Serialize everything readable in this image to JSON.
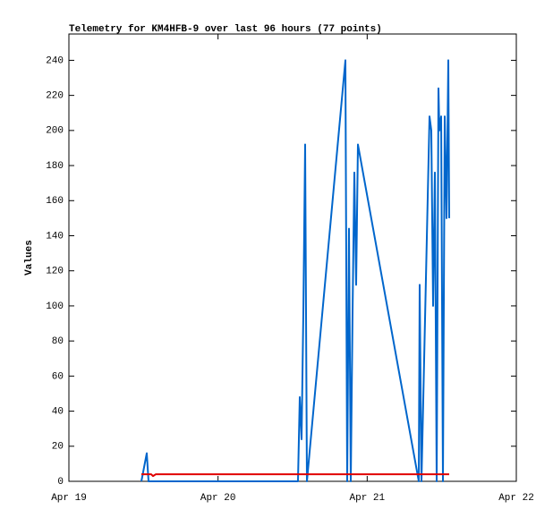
{
  "chart_data": {
    "type": "line",
    "title": "Telemetry for KM4HFB-9 over last 96 hours (77 points)",
    "ylabel": "Values",
    "xlim": [
      0,
      3
    ],
    "xticks": [
      {
        "value": 0,
        "label": "Apr 19"
      },
      {
        "value": 1,
        "label": "Apr 20"
      },
      {
        "value": 2,
        "label": "Apr 21"
      },
      {
        "value": 3,
        "label": "Apr 22"
      }
    ],
    "ylim": [
      0,
      255
    ],
    "yticks": [
      0,
      20,
      40,
      60,
      80,
      100,
      120,
      140,
      160,
      180,
      200,
      220,
      240
    ],
    "grid": false,
    "series": [
      {
        "color": "#0066cc",
        "x": [
          0.486,
          0.504,
          0.522,
          0.534,
          1.536,
          1.548,
          1.56,
          1.572,
          1.584,
          1.596,
          1.854,
          1.866,
          1.878,
          1.89,
          1.902,
          1.914,
          1.926,
          1.938,
          2.346,
          2.352,
          2.364,
          2.418,
          2.43,
          2.442,
          2.454,
          2.466,
          2.478,
          2.484,
          2.496,
          2.508,
          2.52,
          2.532,
          2.544,
          2.55
        ],
        "values": [
          0,
          8,
          16,
          0,
          0,
          48,
          24,
          96,
          192,
          0,
          240,
          0,
          144,
          0,
          96,
          176,
          112,
          192,
          0,
          112,
          0,
          208,
          200,
          100,
          176,
          0,
          224,
          200,
          208,
          0,
          208,
          150,
          240,
          150
        ]
      },
      {
        "color": "#e00000",
        "x": [
          0.486,
          0.552,
          0.564,
          0.582,
          2.55
        ],
        "values": [
          4,
          4,
          3,
          4,
          4
        ]
      }
    ]
  }
}
